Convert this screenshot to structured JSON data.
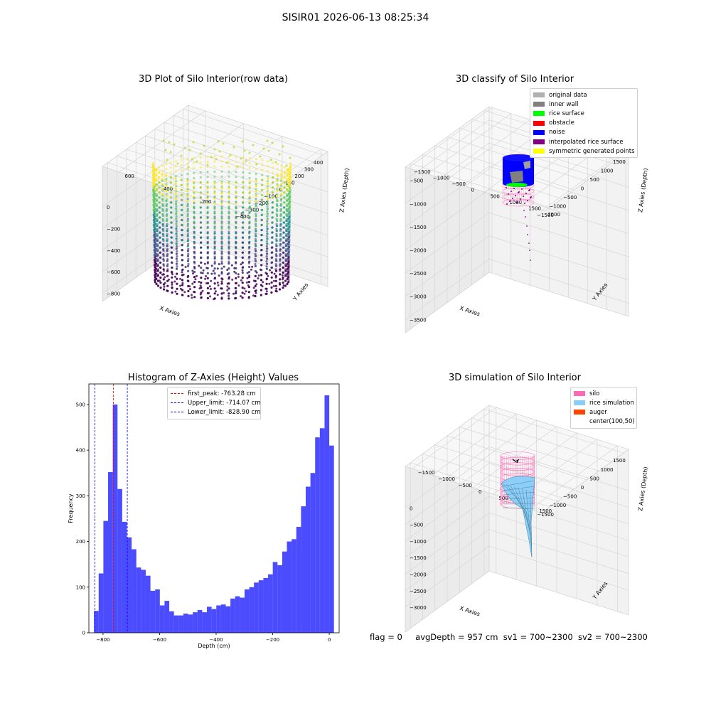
{
  "page": {
    "suptitle": "SISIR01 2026-06-13 08:25:34",
    "status": {
      "flag": "flag = 0",
      "avg_depth": "avgDepth = 957 cm",
      "sv1": "sv1 = 700~2300",
      "sv2": "sv2 = 700~2300"
    }
  },
  "chart_data": [
    {
      "type": "scatter",
      "id": "raw",
      "title": "3D Plot of Silo Interior(row data)",
      "xlabel": "X Axies",
      "ylabel": "Y Axies",
      "zlabel": "Z Axies (Depth)",
      "xticks": [
        "−400",
        "−300",
        "−200",
        "−100",
        "0",
        "100",
        "200",
        "300",
        "400"
      ],
      "yticks": [
        "0",
        "200",
        "400",
        "600"
      ],
      "zticks": [
        "0",
        "−200",
        "−400",
        "−600",
        "−800"
      ],
      "xlim": [
        -420,
        420
      ],
      "ylim": [
        -100,
        700
      ],
      "zlim": [
        -850,
        0
      ],
      "colormap": [
        "#440154",
        "#3b528b",
        "#21918c",
        "#5ec962",
        "#fde725"
      ],
      "description_values": {
        "silo_radius": 370,
        "top_depth": -80,
        "bottom_depth": -830
      }
    },
    {
      "type": "scatter",
      "id": "classify",
      "title": "3D classify of Silo Interior",
      "xlabel": "X Axies",
      "ylabel": "Y Axies",
      "zlabel": "Z Axies (Depth)",
      "xticks": [
        "−1500",
        "−1000",
        "−500",
        "0",
        "500",
        "1000",
        "1500"
      ],
      "yticks": [
        "−1500",
        "−1000",
        "−500",
        "0",
        "500",
        "1000",
        "1500",
        "2000"
      ],
      "zticks": [
        "−500",
        "−1000",
        "−1500",
        "−2000",
        "−2500",
        "−3000",
        "−3500"
      ],
      "legend": [
        {
          "label": "original data",
          "color": "#b0b0b0"
        },
        {
          "label": "inner wall",
          "color": "#808080"
        },
        {
          "label": "rice surface",
          "color": "#00ff00"
        },
        {
          "label": "obstacle",
          "color": "#ff0000"
        },
        {
          "label": "noise",
          "color": "#0000ff"
        },
        {
          "label": "interpolated rice surface",
          "color": "#800080"
        },
        {
          "label": "symmetric generated points",
          "color": "#ffff00"
        }
      ]
    },
    {
      "type": "bar",
      "id": "hist",
      "title": "Histogram of Z-Axies (Height) Values",
      "xlabel": "Depth (cm)",
      "ylabel": "Frequency",
      "xlim": [
        -850,
        35
      ],
      "ylim": [
        0,
        545
      ],
      "xticks": [
        -800,
        -600,
        -400,
        -200,
        0
      ],
      "xtick_labels": [
        "−800",
        "−600",
        "−400",
        "−200",
        "0"
      ],
      "yticks": [
        0,
        100,
        200,
        300,
        400,
        500
      ],
      "bin_start": -832,
      "bin_width": 16.64,
      "values": [
        48,
        130,
        245,
        352,
        500,
        315,
        243,
        209,
        183,
        143,
        138,
        125,
        92,
        95,
        60,
        70,
        47,
        38,
        38,
        42,
        40,
        45,
        50,
        45,
        57,
        52,
        60,
        62,
        58,
        75,
        80,
        77,
        95,
        100,
        110,
        115,
        120,
        128,
        155,
        148,
        178,
        200,
        205,
        232,
        277,
        320,
        350,
        428,
        448,
        520,
        410
      ],
      "bar_color": "#0000ff",
      "bar_alpha": 0.7,
      "vlines": [
        {
          "label": "first_peak: -763.28 cm",
          "x": -763.28,
          "color": "#ff0000"
        },
        {
          "label": "Upper_limit: -714.07 cm",
          "x": -714.07,
          "color": "#0000ff"
        },
        {
          "label": "Lower_limit: -828.90 cm",
          "x": -828.9,
          "color": "#0000ff"
        }
      ]
    },
    {
      "type": "surface",
      "id": "simulation",
      "title": "3D simulation of Silo Interior",
      "xlabel": "X Axies",
      "ylabel": "Y Axies",
      "zlabel": "Z Axies (Depth)",
      "xticks": [
        "−1500",
        "−1000",
        "−500",
        "0",
        "500",
        "1000",
        "1500"
      ],
      "yticks": [
        "−1500",
        "−1000",
        "−500",
        "0",
        "500",
        "1000",
        "1500"
      ],
      "zticks": [
        "0",
        "−500",
        "−1000",
        "−1500",
        "−2000",
        "−2500",
        "−3000"
      ],
      "legend": [
        {
          "label": "silo",
          "color": "#ff69b4"
        },
        {
          "label": "rice simulation",
          "color": "#87cefa"
        },
        {
          "label": "auger",
          "color": "#ff4500"
        },
        {
          "label": "center(100,50)",
          "color": "#ffffff"
        }
      ]
    }
  ]
}
